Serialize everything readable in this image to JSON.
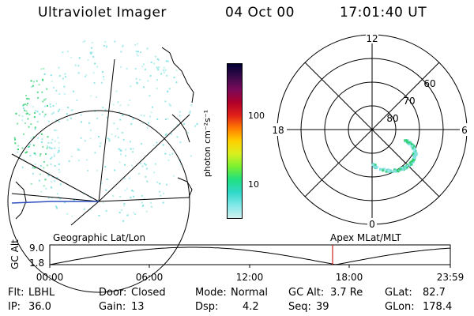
{
  "header": {
    "title": "Ultraviolet Imager",
    "date": "04 Oct 00",
    "time": "17:01:40 UT"
  },
  "colorbar": {
    "unit_label": "photon cm⁻²s⁻¹",
    "ticks": [
      "100",
      "10"
    ],
    "colors": [
      "#000033",
      "#3a0a4a",
      "#7a0a5a",
      "#b0002a",
      "#e0201a",
      "#ff7a00",
      "#ffd000",
      "#d8f020",
      "#7af030",
      "#20e080",
      "#30d8c8",
      "#80e8e8",
      "#d0f0f0"
    ]
  },
  "polar": {
    "mlt_labels": [
      "12",
      "18",
      "6",
      "0"
    ],
    "lat_labels": [
      "60",
      "70",
      "80"
    ]
  },
  "timeline": {
    "ylabel": "GC Alt",
    "yticks": [
      "9.0",
      "1.8"
    ],
    "left_label": "Geographic Lat/Lon",
    "right_label": "Apex  MLat/MLT",
    "xticks": [
      "00:00",
      "06:00",
      "12:00",
      "18:00",
      "23:59"
    ]
  },
  "info": {
    "row1": [
      {
        "key": "Flt:",
        "value": "LBHL"
      },
      {
        "key": "Door:",
        "value": "Closed"
      },
      {
        "key": "Mode:",
        "value": "Normal"
      },
      {
        "key": "GC Alt:",
        "value": "3.7 Re"
      },
      {
        "key": "GLat:",
        "value": "82.7"
      }
    ],
    "row2": [
      {
        "key": "IP:",
        "value": "36.0"
      },
      {
        "key": "Gain:",
        "value": "13"
      },
      {
        "key": "Dsp:",
        "value": "4.2"
      },
      {
        "key": "Seq:",
        "value": "39"
      },
      {
        "key": "GLon:",
        "value": "178.4"
      }
    ]
  },
  "colors": {
    "aurora_green": "#30d070",
    "aurora_cyan": "#80e0e0",
    "marker_red": "#d02020",
    "coast_blue": "#3050c0"
  }
}
